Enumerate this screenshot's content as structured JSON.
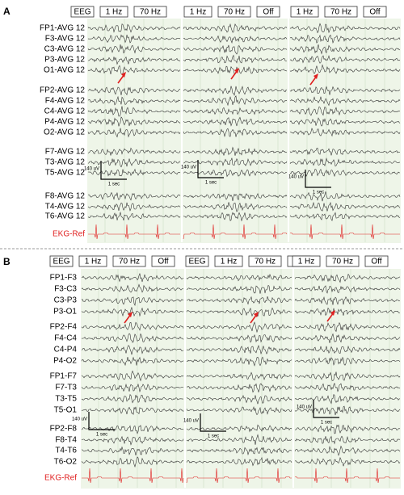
{
  "panels": [
    {
      "label": "A",
      "toolbars": [
        [
          "EEG",
          "1 Hz",
          "70 Hz"
        ],
        [
          "1 Hz",
          "70 Hz",
          "Off"
        ],
        [
          "1 Hz",
          "70 Hz",
          "Off"
        ]
      ],
      "channels": [
        "FP1-AVG 12",
        "F3-AVG 12",
        "C3-AVG 12",
        "P3-AVG 12",
        "O1-AVG 12",
        "FP2-AVG 12",
        "F4-AVG 12",
        "C4-AVG 12",
        "P4-AVG 12",
        "O2-AVG 12",
        "F7-AVG 12",
        "T3-AVG 12",
        "T5-AVG 12",
        "F8-AVG 12",
        "T4-AVG 12",
        "T6-AVG 12",
        "EKG-Ref"
      ],
      "scale_bars": [
        {
          "amplitude": "140 uV",
          "time": "1 sec"
        },
        {
          "amplitude": "140 uV",
          "time": "1 sec"
        },
        {
          "amplitude": "140 uV",
          "time": "1 sec"
        }
      ]
    },
    {
      "label": "B",
      "toolbars": [
        [
          "EEG",
          "1 Hz",
          "70 Hz",
          "Off"
        ],
        [
          "EEG",
          "1 Hz",
          "70 Hz",
          "Off"
        ],
        [
          "1 Hz",
          "70 Hz",
          "Off"
        ]
      ],
      "channels": [
        "FP1-F3",
        "F3-C3",
        "C3-P3",
        "P3-O1",
        "FP2-F4",
        "F4-C4",
        "C4-P4",
        "P4-O2",
        "FP1-F7",
        "F7-T3",
        "T3-T5",
        "T5-O1",
        "FP2-F8",
        "F8-T4",
        "T4-T6",
        "T6-O2",
        "EKG-Ref"
      ],
      "scale_bars": [
        {
          "amplitude": "140 uV",
          "time": "1 sec"
        },
        {
          "amplitude": "140 uV",
          "time": "1 sec"
        },
        {
          "amplitude": "140 uV",
          "time": "1 sec"
        }
      ]
    }
  ]
}
